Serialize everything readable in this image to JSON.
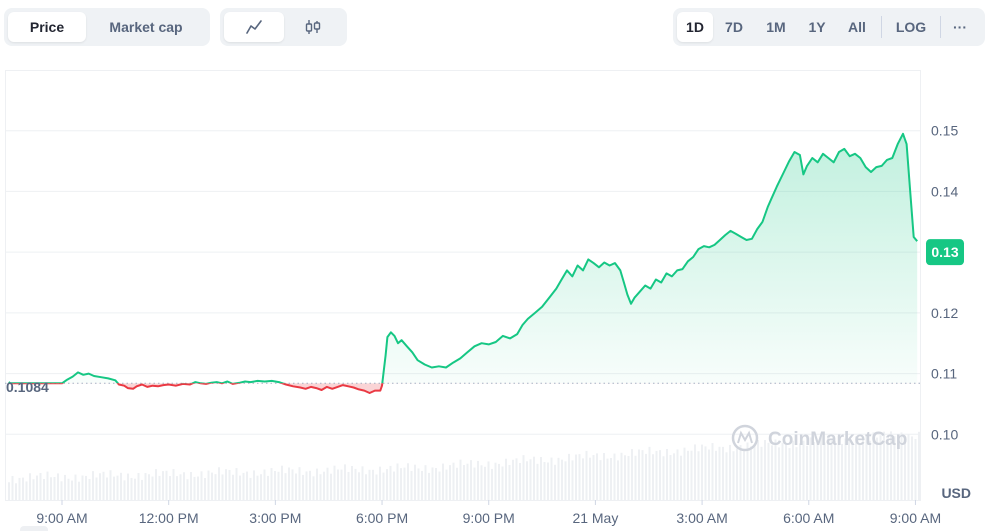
{
  "toolbar": {
    "type_tabs": [
      {
        "label": "Price",
        "active": true
      },
      {
        "label": "Market cap",
        "active": false
      }
    ],
    "mode_tabs": [
      {
        "icon": "line-chart-icon",
        "active": true
      },
      {
        "icon": "candlestick-icon",
        "active": false
      }
    ],
    "range_tabs": [
      {
        "label": "1D",
        "active": true
      },
      {
        "label": "7D",
        "active": false
      },
      {
        "label": "1M",
        "active": false
      },
      {
        "label": "1Y",
        "active": false
      },
      {
        "label": "All",
        "active": false
      }
    ],
    "log_label": "LOG",
    "more_label": "···"
  },
  "chart_data": {
    "type": "area",
    "currency": "USD",
    "open_price": 0.1084,
    "current_price": 0.13,
    "current_price_label": "0.13",
    "open_price_label": "0.1084",
    "ylim": [
      0.09,
      0.16
    ],
    "y_ticks": [
      0.1,
      0.11,
      0.12,
      0.13,
      0.14,
      0.15
    ],
    "y_tick_labels": [
      "0.10",
      "0.11",
      "0.12",
      "0.13",
      "0.14",
      "0.15"
    ],
    "x_tick_labels": [
      "9:00 AM",
      "12:00 PM",
      "3:00 PM",
      "6:00 PM",
      "9:00 PM",
      "21 May",
      "3:00 AM",
      "6:00 AM",
      "9:00 AM"
    ],
    "x_tick_hours": [
      0,
      3,
      6,
      9,
      12,
      15,
      18,
      21,
      24
    ],
    "x_hours_span": [
      0,
      24.1
    ],
    "colors": {
      "up": "#16c784",
      "down": "#ea3943"
    },
    "watermark": "CoinMarketCap",
    "series": [
      {
        "values": [
          [
            -1.5,
            0.1086
          ],
          [
            -1.45,
            0.1084
          ],
          [
            0,
            0.1084
          ],
          [
            0.15,
            0.109
          ],
          [
            0.3,
            0.1095
          ],
          [
            0.45,
            0.1102
          ],
          [
            0.6,
            0.1098
          ],
          [
            0.75,
            0.11
          ],
          [
            0.9,
            0.1096
          ],
          [
            1.1,
            0.1094
          ],
          [
            1.3,
            0.1092
          ],
          [
            1.5,
            0.1089
          ],
          [
            1.6,
            0.1082
          ],
          [
            1.75,
            0.108
          ],
          [
            1.85,
            0.1076
          ],
          [
            2.0,
            0.1075
          ],
          [
            2.1,
            0.1079
          ],
          [
            2.25,
            0.1082
          ],
          [
            2.4,
            0.1078
          ],
          [
            2.55,
            0.108
          ],
          [
            2.7,
            0.1079
          ],
          [
            2.85,
            0.1081
          ],
          [
            3.0,
            0.1082
          ],
          [
            3.2,
            0.108
          ],
          [
            3.4,
            0.1083
          ],
          [
            3.6,
            0.1082
          ],
          [
            3.75,
            0.1086
          ],
          [
            3.9,
            0.1084
          ],
          [
            4.05,
            0.1083
          ],
          [
            4.2,
            0.1085
          ],
          [
            4.35,
            0.1086
          ],
          [
            4.5,
            0.1084
          ],
          [
            4.65,
            0.1087
          ],
          [
            4.8,
            0.1083
          ],
          [
            5.0,
            0.1085
          ],
          [
            5.15,
            0.1087
          ],
          [
            5.3,
            0.1086
          ],
          [
            5.5,
            0.1088
          ],
          [
            5.7,
            0.1087
          ],
          [
            5.9,
            0.1088
          ],
          [
            6.1,
            0.1086
          ],
          [
            6.3,
            0.1082
          ],
          [
            6.5,
            0.1079
          ],
          [
            6.7,
            0.1077
          ],
          [
            6.85,
            0.1075
          ],
          [
            7.0,
            0.1078
          ],
          [
            7.15,
            0.1076
          ],
          [
            7.3,
            0.1073
          ],
          [
            7.45,
            0.1078
          ],
          [
            7.6,
            0.1075
          ],
          [
            7.75,
            0.1078
          ],
          [
            7.9,
            0.1081
          ],
          [
            8.05,
            0.1079
          ],
          [
            8.2,
            0.1077
          ],
          [
            8.35,
            0.1074
          ],
          [
            8.5,
            0.1072
          ],
          [
            8.65,
            0.1068
          ],
          [
            8.8,
            0.1072
          ],
          [
            8.95,
            0.1072
          ],
          [
            9.0,
            0.108
          ],
          [
            9.05,
            0.1105
          ],
          [
            9.1,
            0.113
          ],
          [
            9.15,
            0.116
          ],
          [
            9.25,
            0.1168
          ],
          [
            9.35,
            0.1162
          ],
          [
            9.45,
            0.115
          ],
          [
            9.55,
            0.1155
          ],
          [
            9.7,
            0.1145
          ],
          [
            9.85,
            0.1135
          ],
          [
            10.0,
            0.1122
          ],
          [
            10.2,
            0.1115
          ],
          [
            10.4,
            0.111
          ],
          [
            10.6,
            0.1112
          ],
          [
            10.8,
            0.111
          ],
          [
            11.0,
            0.1118
          ],
          [
            11.2,
            0.1125
          ],
          [
            11.4,
            0.1135
          ],
          [
            11.6,
            0.1145
          ],
          [
            11.8,
            0.115
          ],
          [
            12.0,
            0.1148
          ],
          [
            12.2,
            0.1152
          ],
          [
            12.4,
            0.1162
          ],
          [
            12.6,
            0.1158
          ],
          [
            12.8,
            0.1165
          ],
          [
            12.95,
            0.118
          ],
          [
            13.1,
            0.119
          ],
          [
            13.3,
            0.12
          ],
          [
            13.5,
            0.121
          ],
          [
            13.7,
            0.1225
          ],
          [
            13.9,
            0.124
          ],
          [
            14.05,
            0.1255
          ],
          [
            14.2,
            0.127
          ],
          [
            14.35,
            0.126
          ],
          [
            14.5,
            0.1278
          ],
          [
            14.65,
            0.127
          ],
          [
            14.8,
            0.1288
          ],
          [
            14.95,
            0.1282
          ],
          [
            15.1,
            0.1275
          ],
          [
            15.25,
            0.1283
          ],
          [
            15.4,
            0.1278
          ],
          [
            15.55,
            0.1282
          ],
          [
            15.7,
            0.127
          ],
          [
            15.8,
            0.125
          ],
          [
            15.9,
            0.123
          ],
          [
            16.0,
            0.1215
          ],
          [
            16.1,
            0.1225
          ],
          [
            16.25,
            0.1235
          ],
          [
            16.4,
            0.1245
          ],
          [
            16.55,
            0.124
          ],
          [
            16.7,
            0.1255
          ],
          [
            16.85,
            0.125
          ],
          [
            17.0,
            0.1265
          ],
          [
            17.15,
            0.126
          ],
          [
            17.3,
            0.127
          ],
          [
            17.45,
            0.1272
          ],
          [
            17.6,
            0.1285
          ],
          [
            17.75,
            0.1292
          ],
          [
            17.9,
            0.1305
          ],
          [
            18.05,
            0.131
          ],
          [
            18.2,
            0.1308
          ],
          [
            18.35,
            0.1312
          ],
          [
            18.5,
            0.132
          ],
          [
            18.65,
            0.1328
          ],
          [
            18.8,
            0.1335
          ],
          [
            18.95,
            0.133
          ],
          [
            19.1,
            0.1325
          ],
          [
            19.25,
            0.132
          ],
          [
            19.4,
            0.1322
          ],
          [
            19.55,
            0.1338
          ],
          [
            19.7,
            0.135
          ],
          [
            19.85,
            0.1375
          ],
          [
            19.95,
            0.1388
          ],
          [
            20.1,
            0.1408
          ],
          [
            20.3,
            0.1432
          ],
          [
            20.45,
            0.145
          ],
          [
            20.6,
            0.1465
          ],
          [
            20.75,
            0.146
          ],
          [
            20.85,
            0.1428
          ],
          [
            20.95,
            0.1442
          ],
          [
            21.1,
            0.1455
          ],
          [
            21.25,
            0.1448
          ],
          [
            21.4,
            0.1462
          ],
          [
            21.55,
            0.1455
          ],
          [
            21.7,
            0.1448
          ],
          [
            21.85,
            0.1465
          ],
          [
            22.0,
            0.147
          ],
          [
            22.15,
            0.1458
          ],
          [
            22.3,
            0.1462
          ],
          [
            22.45,
            0.1455
          ],
          [
            22.6,
            0.144
          ],
          [
            22.75,
            0.1432
          ],
          [
            22.9,
            0.144
          ],
          [
            23.05,
            0.1442
          ],
          [
            23.2,
            0.1452
          ],
          [
            23.35,
            0.1455
          ],
          [
            23.5,
            0.1478
          ],
          [
            23.65,
            0.1495
          ],
          [
            23.75,
            0.1478
          ],
          [
            23.85,
            0.1402
          ],
          [
            23.95,
            0.1325
          ],
          [
            24.05,
            0.1318
          ]
        ]
      }
    ]
  }
}
